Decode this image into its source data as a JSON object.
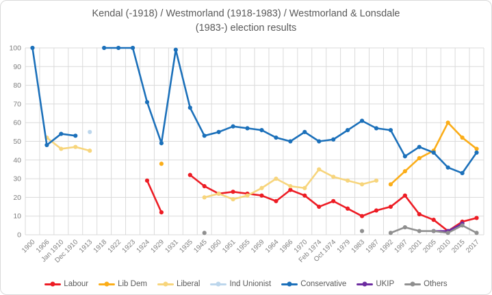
{
  "chart_data": {
    "type": "line",
    "title": "Kendal (-1918) / Westmorland (1918-1983) / Westmorland & Lonsdale (1983-) election results",
    "title_lines": [
      "Kendal (-1918) / Westmorland (1918-1983) / Westmorland & Lonsdale",
      "(1983-) election results"
    ],
    "xlabel": "",
    "ylabel": "",
    "ylim": [
      0,
      100
    ],
    "ytick_step": 10,
    "grid": true,
    "legend_position": "bottom",
    "title_color": "#595959",
    "axis_label_color": "#7f7f7f",
    "grid_color": "#dadada",
    "categories": [
      "1900",
      "1906",
      "Jan 1910",
      "Dec 1910",
      "1913",
      "1918",
      "1922",
      "1923",
      "1924",
      "1929",
      "1931",
      "1935",
      "1945",
      "1950",
      "1951",
      "1955",
      "1959",
      "1964",
      "1966",
      "1970",
      "Feb 1974",
      "Oct 1974",
      "1979",
      "1983",
      "1987",
      "1992",
      "1997",
      "2001",
      "2005",
      "2010",
      "2015",
      "2017"
    ],
    "series": [
      {
        "name": "Labour",
        "color": "#ed1c24",
        "values": [
          null,
          null,
          null,
          null,
          null,
          null,
          null,
          null,
          29,
          12,
          null,
          32,
          26,
          22,
          23,
          22,
          21,
          18,
          24,
          21,
          15,
          18,
          14,
          10,
          13,
          15,
          21,
          11,
          8,
          2,
          7,
          9
        ]
      },
      {
        "name": "Lib Dem",
        "color": "#fbad18",
        "values": [
          null,
          null,
          null,
          null,
          null,
          null,
          null,
          null,
          null,
          38,
          null,
          null,
          null,
          null,
          null,
          null,
          null,
          null,
          null,
          null,
          null,
          null,
          null,
          null,
          null,
          27,
          34,
          41,
          45,
          60,
          52,
          46
        ]
      },
      {
        "name": "Liberal",
        "color": "#f7d57c",
        "values": [
          null,
          52,
          46,
          47,
          45,
          null,
          null,
          null,
          null,
          null,
          null,
          null,
          20,
          22,
          19,
          21,
          25,
          30,
          26,
          25,
          35,
          31,
          29,
          27,
          29,
          null,
          null,
          null,
          null,
          null,
          null,
          null
        ]
      },
      {
        "name": "Ind Unionist",
        "color": "#bcd6ec",
        "values": [
          null,
          null,
          null,
          null,
          55,
          null,
          null,
          null,
          null,
          null,
          null,
          null,
          null,
          null,
          null,
          null,
          null,
          null,
          null,
          null,
          null,
          null,
          null,
          null,
          null,
          null,
          null,
          null,
          null,
          null,
          null,
          null
        ]
      },
      {
        "name": "Conservative",
        "color": "#1b70ba",
        "values": [
          100,
          48,
          54,
          53,
          null,
          100,
          100,
          100,
          71,
          49,
          99,
          68,
          53,
          55,
          58,
          57,
          56,
          52,
          50,
          55,
          50,
          51,
          56,
          61,
          57,
          56,
          42,
          47,
          44,
          36,
          33,
          44
        ]
      },
      {
        "name": "UKIP",
        "color": "#6c2ca0",
        "values": [
          null,
          null,
          null,
          null,
          null,
          null,
          null,
          null,
          null,
          null,
          null,
          null,
          null,
          null,
          null,
          null,
          null,
          null,
          null,
          null,
          null,
          null,
          null,
          null,
          null,
          null,
          null,
          null,
          2,
          2,
          6,
          null
        ]
      },
      {
        "name": "Others",
        "color": "#8f8f8f",
        "values": [
          null,
          null,
          null,
          null,
          null,
          null,
          null,
          null,
          null,
          null,
          null,
          null,
          1,
          null,
          null,
          null,
          null,
          null,
          null,
          null,
          null,
          null,
          null,
          2,
          null,
          1,
          4,
          2,
          2,
          1,
          5,
          1
        ]
      }
    ]
  }
}
